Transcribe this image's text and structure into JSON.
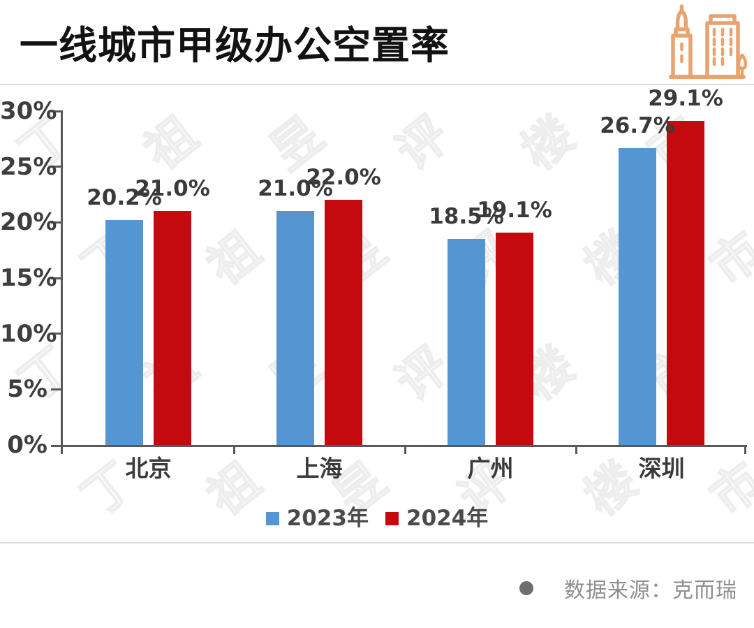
{
  "header": {
    "title": "一线城市甲级办公空置率",
    "icon": "buildings-icon"
  },
  "chart_data": {
    "type": "bar",
    "title": "一线城市甲级办公空置率",
    "categories": [
      "北京",
      "上海",
      "广州",
      "深圳"
    ],
    "series": [
      {
        "name": "2023年",
        "color": "#5596D2",
        "values": [
          20.2,
          21.0,
          18.5,
          26.7
        ]
      },
      {
        "name": "2024年",
        "color": "#C50A0F",
        "values": [
          21.0,
          22.0,
          19.1,
          29.1
        ]
      }
    ],
    "value_labels": [
      [
        "20.2%",
        "21.0%",
        "18.5%",
        "26.7%"
      ],
      [
        "21.0%",
        "22.0%",
        "19.1%",
        "29.1%"
      ]
    ],
    "xlabel": "",
    "ylabel": "",
    "y_axis": {
      "min": 0,
      "max": 30,
      "step": 5,
      "tick_labels": [
        "0%",
        "5%",
        "10%",
        "15%",
        "20%",
        "25%",
        "30%"
      ]
    },
    "grid": false,
    "legend_position": "bottom"
  },
  "legend": {
    "items": [
      {
        "label": "2023年",
        "color": "#5596D2"
      },
      {
        "label": "2024年",
        "color": "#C50A0F"
      }
    ]
  },
  "footer": {
    "source_text": "数据来源：克而瑞"
  },
  "watermark": {
    "text": "丁祖昱评楼市"
  },
  "colors": {
    "axis": "#58595B",
    "tick_label": "#3E3E3E",
    "value_label": "#3A3A3A",
    "title": "#121212",
    "divider": "#DCDCDC",
    "source_text": "#8F8F8F",
    "source_bullet": "#6E6E6E",
    "icon": "#E9A36F",
    "background": "#FFFFFF"
  }
}
